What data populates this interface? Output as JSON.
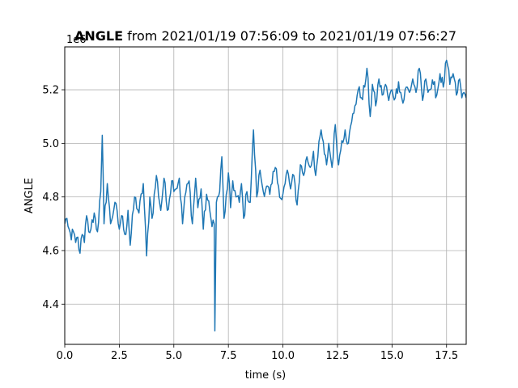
{
  "chart_data": {
    "type": "line",
    "title_bold": "ANGLE",
    "title_rest": " from 2021/01/19 07:56:09 to 2021/01/19 07:56:27",
    "xlabel": "time (s)",
    "ylabel": "ANGLE",
    "offset_text": "1e6",
    "xlim": [
      0,
      18.4
    ],
    "ylim": [
      4.25,
      5.36
    ],
    "xticks": [
      0,
      2.5,
      5,
      7.5,
      10,
      12.5,
      15,
      17.5
    ],
    "xtick_labels": [
      "0.0",
      "2.5",
      "5.0",
      "7.5",
      "10.0",
      "12.5",
      "15.0",
      "17.5"
    ],
    "yticks": [
      4.4,
      4.6,
      4.8,
      5.0,
      5.2
    ],
    "ytick_labels": [
      "4.4",
      "4.6",
      "4.8",
      "5.0",
      "5.2"
    ],
    "grid": true,
    "series_color": "#1f77b4",
    "keypoints": [
      [
        0,
        4.7
      ],
      [
        0.1,
        4.72
      ],
      [
        0.2,
        4.68
      ],
      [
        0.3,
        4.64
      ],
      [
        0.4,
        4.67
      ],
      [
        0.5,
        4.63
      ],
      [
        0.6,
        4.65
      ],
      [
        0.7,
        4.59
      ],
      [
        0.8,
        4.66
      ],
      [
        0.9,
        4.63
      ],
      [
        1.0,
        4.73
      ],
      [
        1.1,
        4.67
      ],
      [
        1.2,
        4.68
      ],
      [
        1.35,
        4.74
      ],
      [
        1.5,
        4.67
      ],
      [
        1.65,
        4.82
      ],
      [
        1.72,
        5.03
      ],
      [
        1.8,
        4.7
      ],
      [
        1.95,
        4.85
      ],
      [
        2.1,
        4.7
      ],
      [
        2.3,
        4.78
      ],
      [
        2.5,
        4.68
      ],
      [
        2.6,
        4.73
      ],
      [
        2.8,
        4.66
      ],
      [
        2.9,
        4.75
      ],
      [
        3.0,
        4.62
      ],
      [
        3.2,
        4.8
      ],
      [
        3.4,
        4.74
      ],
      [
        3.6,
        4.85
      ],
      [
        3.75,
        4.58
      ],
      [
        3.9,
        4.8
      ],
      [
        4.0,
        4.72
      ],
      [
        4.2,
        4.88
      ],
      [
        4.4,
        4.75
      ],
      [
        4.55,
        4.87
      ],
      [
        4.7,
        4.75
      ],
      [
        4.9,
        4.86
      ],
      [
        5.1,
        4.83
      ],
      [
        5.25,
        4.87
      ],
      [
        5.4,
        4.7
      ],
      [
        5.5,
        4.8
      ],
      [
        5.7,
        4.86
      ],
      [
        5.85,
        4.7
      ],
      [
        6.0,
        4.87
      ],
      [
        6.1,
        4.76
      ],
      [
        6.25,
        4.83
      ],
      [
        6.35,
        4.68
      ],
      [
        6.5,
        4.81
      ],
      [
        6.7,
        4.72
      ],
      [
        6.85,
        4.7
      ],
      [
        6.88,
        4.3
      ],
      [
        6.95,
        4.78
      ],
      [
        7.1,
        4.82
      ],
      [
        7.2,
        4.95
      ],
      [
        7.3,
        4.72
      ],
      [
        7.45,
        4.83
      ],
      [
        7.5,
        4.89
      ],
      [
        7.6,
        4.76
      ],
      [
        7.7,
        4.86
      ],
      [
        7.85,
        4.8
      ],
      [
        8.0,
        4.78
      ],
      [
        8.1,
        4.85
      ],
      [
        8.2,
        4.72
      ],
      [
        8.35,
        4.82
      ],
      [
        8.5,
        4.78
      ],
      [
        8.65,
        5.05
      ],
      [
        8.8,
        4.8
      ],
      [
        8.95,
        4.9
      ],
      [
        9.1,
        4.82
      ],
      [
        9.25,
        4.84
      ],
      [
        9.4,
        4.81
      ],
      [
        9.5,
        4.85
      ],
      [
        9.65,
        4.91
      ],
      [
        9.8,
        4.84
      ],
      [
        9.95,
        4.79
      ],
      [
        10.1,
        4.85
      ],
      [
        10.2,
        4.9
      ],
      [
        10.35,
        4.83
      ],
      [
        10.5,
        4.88
      ],
      [
        10.65,
        4.77
      ],
      [
        10.8,
        4.92
      ],
      [
        10.95,
        4.88
      ],
      [
        11.1,
        4.95
      ],
      [
        11.25,
        4.91
      ],
      [
        11.4,
        4.97
      ],
      [
        11.5,
        4.88
      ],
      [
        11.6,
        4.95
      ],
      [
        11.75,
        5.05
      ],
      [
        11.9,
        4.96
      ],
      [
        12.0,
        4.92
      ],
      [
        12.1,
        5.0
      ],
      [
        12.25,
        4.91
      ],
      [
        12.4,
        5.07
      ],
      [
        12.55,
        4.92
      ],
      [
        12.7,
        5.01
      ],
      [
        12.85,
        5.05
      ],
      [
        13.0,
        5.0
      ],
      [
        13.15,
        5.08
      ],
      [
        13.3,
        5.14
      ],
      [
        13.45,
        5.2
      ],
      [
        13.6,
        5.17
      ],
      [
        13.75,
        5.21
      ],
      [
        13.85,
        5.28
      ],
      [
        14.0,
        5.1
      ],
      [
        14.1,
        5.22
      ],
      [
        14.25,
        5.14
      ],
      [
        14.4,
        5.24
      ],
      [
        14.55,
        5.18
      ],
      [
        14.7,
        5.22
      ],
      [
        14.85,
        5.16
      ],
      [
        15.0,
        5.2
      ],
      [
        15.15,
        5.17
      ],
      [
        15.3,
        5.23
      ],
      [
        15.5,
        5.15
      ],
      [
        15.65,
        5.21
      ],
      [
        15.8,
        5.19
      ],
      [
        15.95,
        5.24
      ],
      [
        16.1,
        5.19
      ],
      [
        16.25,
        5.28
      ],
      [
        16.4,
        5.16
      ],
      [
        16.55,
        5.24
      ],
      [
        16.7,
        5.2
      ],
      [
        16.9,
        5.22
      ],
      [
        17.05,
        5.18
      ],
      [
        17.2,
        5.26
      ],
      [
        17.35,
        5.21
      ],
      [
        17.5,
        5.31
      ],
      [
        17.65,
        5.22
      ],
      [
        17.8,
        5.26
      ],
      [
        17.95,
        5.18
      ],
      [
        18.1,
        5.24
      ],
      [
        18.2,
        5.17
      ],
      [
        18.3,
        5.19
      ],
      [
        18.4,
        5.17
      ]
    ],
    "sample_step": 0.05,
    "noise_amplitude": 0.025
  }
}
